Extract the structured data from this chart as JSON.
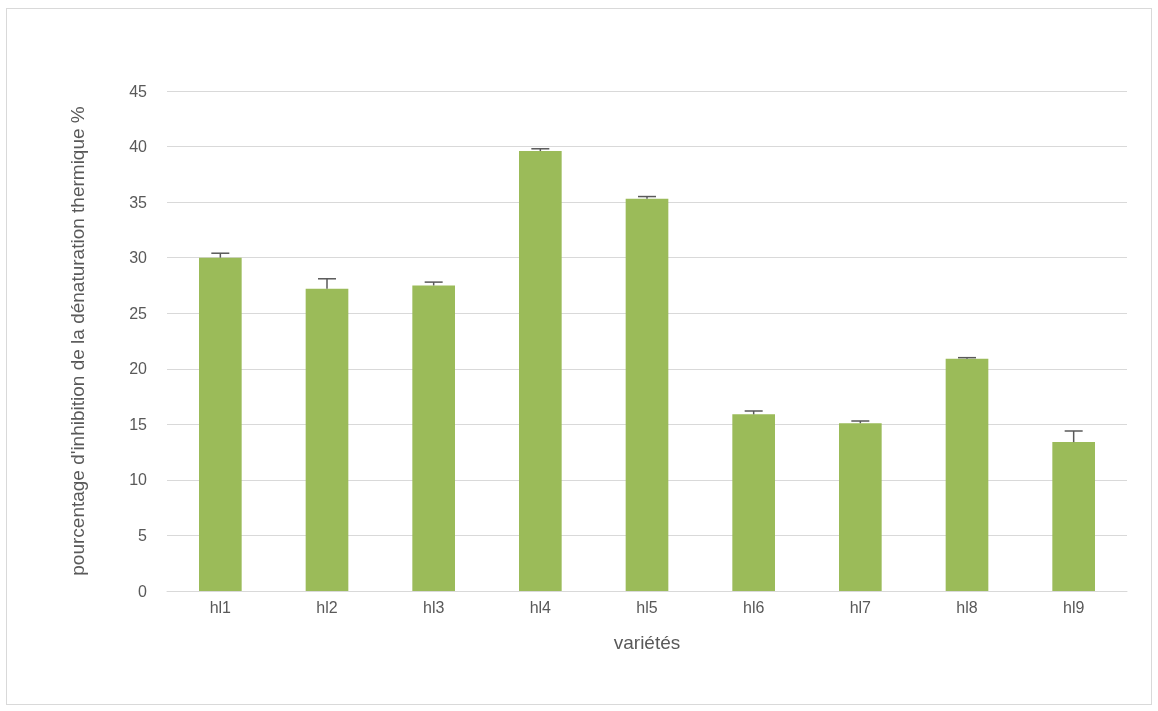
{
  "chart_data": {
    "type": "bar",
    "xlabel": "variétés",
    "ylabel": "pourcentage d'inhibition de la dénaturation thermique %",
    "categories": [
      "hl1",
      "hl2",
      "hl3",
      "hl4",
      "hl5",
      "hl6",
      "hl7",
      "hl8",
      "hl9"
    ],
    "values": [
      30.0,
      27.2,
      27.5,
      39.6,
      35.3,
      15.9,
      15.1,
      20.9,
      13.4
    ],
    "errors": [
      [
        30.0,
        30.4
      ],
      [
        27.2,
        28.1
      ],
      [
        27.5,
        27.8
      ],
      [
        39.6,
        39.8
      ],
      [
        35.3,
        35.5
      ],
      [
        15.9,
        16.2
      ],
      [
        15.1,
        15.3
      ],
      [
        20.9,
        21.0
      ],
      [
        13.4,
        14.4
      ]
    ],
    "color": "#9bbb59",
    "ylim": [
      0,
      45
    ],
    "yticks": [
      0,
      5,
      10,
      15,
      20,
      25,
      30,
      35,
      40,
      45
    ],
    "grid": "y"
  }
}
